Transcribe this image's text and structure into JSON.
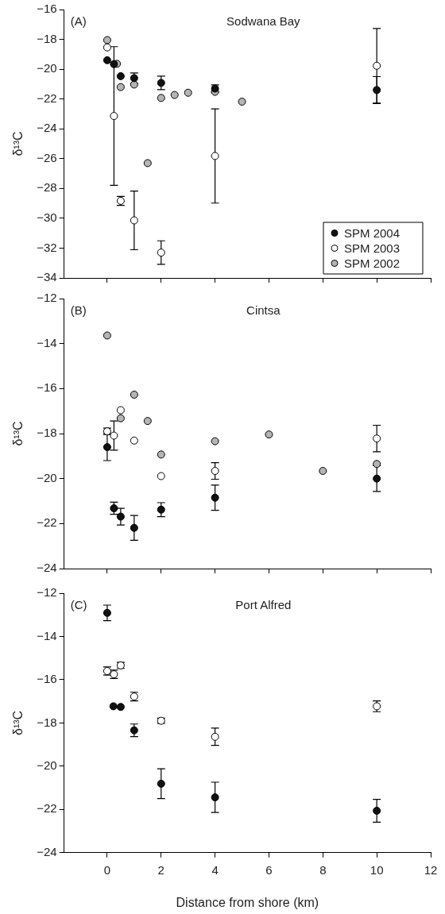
{
  "chart_data": [
    {
      "type": "scatter",
      "annotations": [
        "(A)",
        "Sodwana Bay"
      ],
      "ylabel": "δ¹³C",
      "xlim": [
        -1.6,
        12
      ],
      "xticks": [
        0,
        2,
        4,
        6,
        8,
        10,
        12
      ],
      "ylim": [
        -34,
        -16
      ],
      "yticks": [
        -34,
        -32,
        -30,
        -28,
        -26,
        -24,
        -22,
        -20,
        -18,
        -16
      ],
      "tick_labels": "y",
      "legend": "bottom right",
      "marker": "circle",
      "grid": false,
      "series": [
        {
          "name": "SPM 2004",
          "color": "#111111",
          "x": [
            0,
            0.25,
            0.5,
            1,
            2,
            4,
            10
          ],
          "values": [
            -19.4,
            -19.66,
            -20.47,
            -20.6,
            -20.92,
            -21.3,
            -21.4
          ],
          "errors": [
            null,
            null,
            null,
            0.35,
            0.45,
            0.25,
            0.9
          ]
        },
        {
          "name": "SPM 2003",
          "color": "#ffffff",
          "x": [
            0,
            0.25,
            0.5,
            1,
            2,
            4,
            10
          ],
          "values": [
            -18.54,
            -23.14,
            -28.83,
            -30.14,
            -32.3,
            -25.82,
            -19.77
          ],
          "errors": [
            null,
            4.65,
            0.3,
            1.97,
            0.79,
            3.16,
            2.5
          ]
        },
        {
          "name": "SPM 2002",
          "color": "#b4b4b4",
          "x": [
            0,
            0.36,
            0.5,
            1,
            1.5,
            2,
            2.5,
            3,
            4,
            5
          ],
          "values": [
            -18.05,
            -19.64,
            -21.2,
            -21.03,
            -26.3,
            -21.93,
            -21.73,
            -21.58,
            -21.52,
            -22.18
          ]
        }
      ]
    },
    {
      "type": "scatter",
      "annotations": [
        "(B)",
        "Cintsa"
      ],
      "ylabel": "δ¹³C",
      "xlim": [
        -1.6,
        12
      ],
      "xticks": [
        0,
        2,
        4,
        6,
        8,
        10,
        12
      ],
      "ylim": [
        -24,
        -12
      ],
      "yticks": [
        -24,
        -22,
        -20,
        -18,
        -16,
        -14,
        -12
      ],
      "tick_labels": "y",
      "marker": "circle",
      "grid": false,
      "series": [
        {
          "color": "#111111",
          "x": [
            0,
            0.25,
            0.5,
            1,
            2,
            4,
            10
          ],
          "values": [
            -18.6,
            -21.32,
            -21.69,
            -22.19,
            -21.38,
            -20.85,
            -20
          ],
          "errors": [
            0.6,
            0.27,
            0.37,
            0.55,
            0.31,
            0.56,
            0.57
          ]
        },
        {
          "color": "#ffffff",
          "x": [
            0,
            0.25,
            0.5,
            1,
            2,
            4,
            10
          ],
          "values": [
            -17.9,
            -18.09,
            -16.96,
            -18.31,
            -19.89,
            -19.66,
            -18.22
          ],
          "errors": [
            0.14,
            0.65,
            null,
            null,
            null,
            0.37,
            0.59
          ]
        },
        {
          "color": "#b4b4b4",
          "x": [
            0,
            0.5,
            1,
            1.5,
            2,
            4,
            6,
            8,
            10
          ],
          "values": [
            -13.64,
            -17.32,
            -16.27,
            -17.44,
            -18.93,
            -18.34,
            -18.04,
            -19.66,
            -19.35
          ]
        }
      ]
    },
    {
      "type": "scatter",
      "annotations": [
        "(C)",
        "Port Alfred"
      ],
      "xlabel": "Distance from shore (km)",
      "ylabel": "δ¹³C",
      "xlim": [
        -1.6,
        12
      ],
      "xticks": [
        0,
        2,
        4,
        6,
        8,
        10,
        12
      ],
      "ylim": [
        -24,
        -12
      ],
      "yticks": [
        -24,
        -22,
        -20,
        -18,
        -16,
        -14,
        -12
      ],
      "marker": "circle",
      "grid": false,
      "series": [
        {
          "color": "#111111",
          "x": [
            0,
            0.23,
            0.5,
            1,
            2,
            4,
            10
          ],
          "values": [
            -12.91,
            -17.23,
            -17.26,
            -18.34,
            -20.81,
            -21.44,
            -22.06
          ],
          "errors": [
            0.36,
            null,
            null,
            0.29,
            0.69,
            0.7,
            0.53
          ]
        },
        {
          "color": "#ffffff",
          "x": [
            0,
            0.25,
            0.5,
            1,
            2,
            4,
            10
          ],
          "values": [
            -15.6,
            -15.75,
            -15.34,
            -16.78,
            -17.9,
            -18.64,
            -17.23
          ],
          "errors": [
            0.19,
            0.19,
            0.14,
            0.2,
            0.12,
            0.4,
            0.25
          ]
        }
      ]
    }
  ]
}
